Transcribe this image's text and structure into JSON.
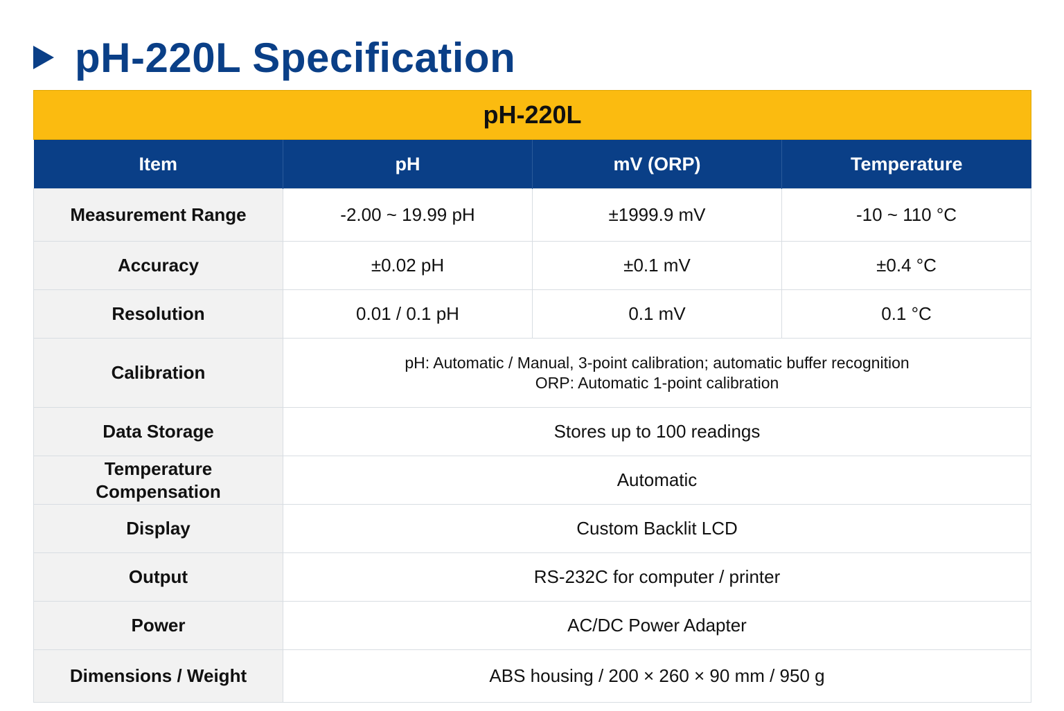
{
  "title": "pH-220L Specification",
  "table": {
    "banner": "pH-220L",
    "headers": [
      "Item",
      "pH",
      "mV (ORP)",
      "Temperature"
    ],
    "rows": [
      {
        "label": "Measurement Range",
        "ph": "-2.00 ~ 19.99 pH",
        "mv": "±1999.9 mV",
        "temp": "-10 ~ 110 °C"
      },
      {
        "label": "Accuracy",
        "ph": "±0.02 pH",
        "mv": "±0.1 mV",
        "temp": "±0.4 °C"
      },
      {
        "label": "Resolution",
        "ph": "0.01 / 0.1 pH",
        "mv": "0.1 mV",
        "temp": "0.1 °C"
      }
    ],
    "calibration": {
      "label": "Calibration",
      "line1": "pH: Automatic / Manual, 3-point calibration; automatic buffer recognition",
      "line2": "ORP: Automatic 1-point calibration"
    },
    "merged_rows": [
      {
        "label_line1": "Data Storage",
        "label_line2": "",
        "value": "Stores up to 100 readings"
      },
      {
        "label_line1": "Temperature",
        "label_line2": "Compensation",
        "value": "Automatic"
      },
      {
        "label_line1": "Display",
        "label_line2": "",
        "value": "Custom Backlit LCD"
      },
      {
        "label_line1": "Output",
        "label_line2": "",
        "value": "RS-232C for computer / printer"
      },
      {
        "label_line1": "Power",
        "label_line2": "",
        "value": "AC/DC Power Adapter"
      }
    ],
    "dimensions": {
      "label": "Dimensions / Weight",
      "value": "ABS housing / 200 × 260 × 90 mm / 950 g"
    }
  },
  "colors": {
    "title_blue": "#0a3f87",
    "banner_yellow": "#fbbb10",
    "header_blue": "#0a3f87",
    "label_bg": "#f2f2f2"
  },
  "icons": {
    "title_marker": "triangle-right-icon"
  }
}
